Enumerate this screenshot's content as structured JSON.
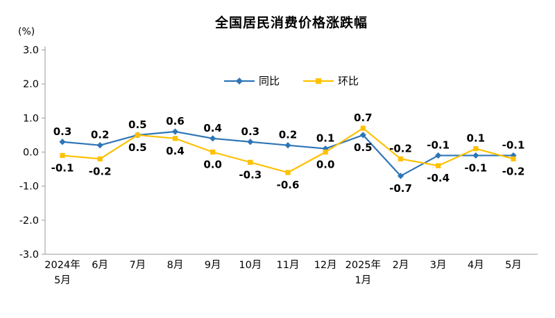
{
  "title": "全国居民消费价格涨跌幅",
  "y_unit_label": "(%)",
  "chart_data": {
    "type": "line",
    "categories": [
      "2024年\n5月",
      "6月",
      "7月",
      "8月",
      "9月",
      "10月",
      "11月",
      "12月",
      "2025年\n1月",
      "2月",
      "3月",
      "4月",
      "5月"
    ],
    "series": [
      {
        "name": "同比",
        "color": "#2E75B6",
        "marker": "diamond",
        "values": [
          0.3,
          0.2,
          0.5,
          0.6,
          0.4,
          0.3,
          0.2,
          0.1,
          0.5,
          -0.7,
          -0.1,
          -0.1,
          -0.1
        ]
      },
      {
        "name": "环比",
        "color": "#FFC000",
        "marker": "square",
        "values": [
          -0.1,
          -0.2,
          0.5,
          0.4,
          0.0,
          -0.3,
          -0.6,
          0.0,
          0.7,
          -0.2,
          -0.4,
          0.1,
          -0.2
        ]
      }
    ],
    "ylim": [
      -3.0,
      3.0
    ],
    "yticks": [
      3.0,
      2.0,
      1.0,
      0.0,
      -1.0,
      -2.0,
      -3.0
    ],
    "grid": false,
    "legend_position": "top-center",
    "axis_color": "#9a9a9a",
    "label_color": "#000000"
  }
}
